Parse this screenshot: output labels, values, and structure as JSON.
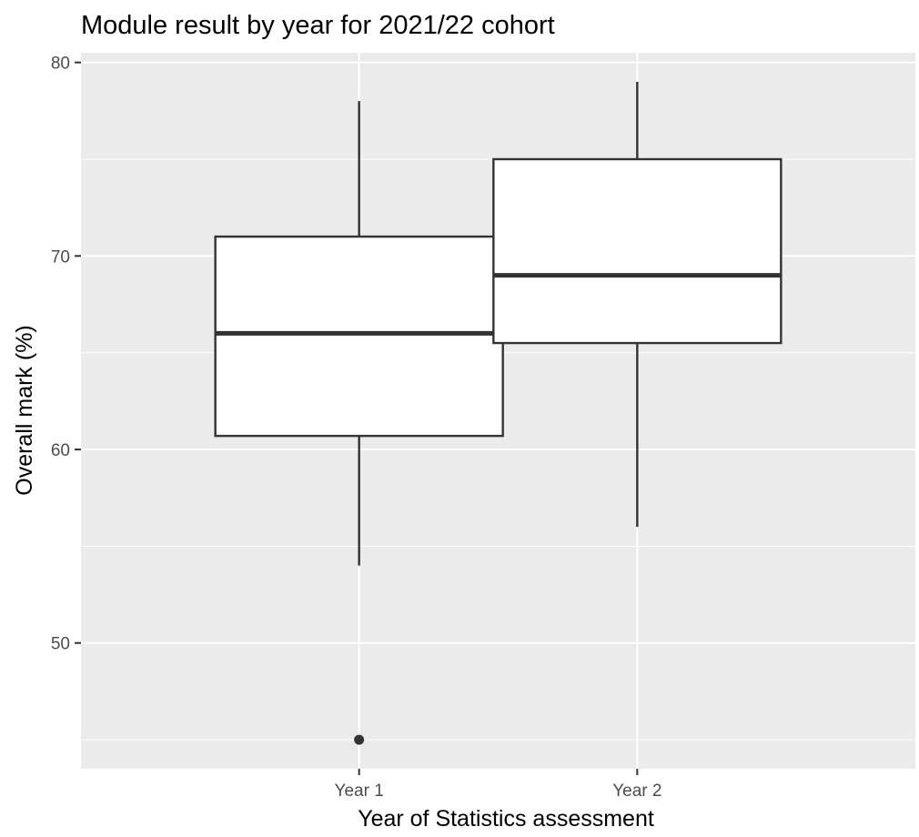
{
  "chart_data": {
    "type": "boxplot",
    "title": "Module result by year for 2021/22 cohort",
    "xlabel": "Year of Statistics assessment",
    "ylabel": "Overall mark (%)",
    "categories": [
      "Year 1",
      "Year 2"
    ],
    "y_ticks": [
      50,
      60,
      70,
      80
    ],
    "ylim": [
      43.5,
      80.5
    ],
    "grid": true,
    "legend": "none",
    "boxes": [
      {
        "category": "Year 1",
        "whisker_low": 54,
        "q1": 60.7,
        "median": 66,
        "q3": 71,
        "whisker_high": 78,
        "outliers": [
          45
        ]
      },
      {
        "category": "Year 2",
        "whisker_low": 56,
        "q1": 65.5,
        "median": 69,
        "q3": 75,
        "whisker_high": 79,
        "outliers": []
      }
    ],
    "colors": {
      "panel_background": "#ebebeb",
      "grid": "#ffffff",
      "box_fill": "#ffffff",
      "box_line": "#333333",
      "tick_label": "#4d4d4d"
    }
  }
}
